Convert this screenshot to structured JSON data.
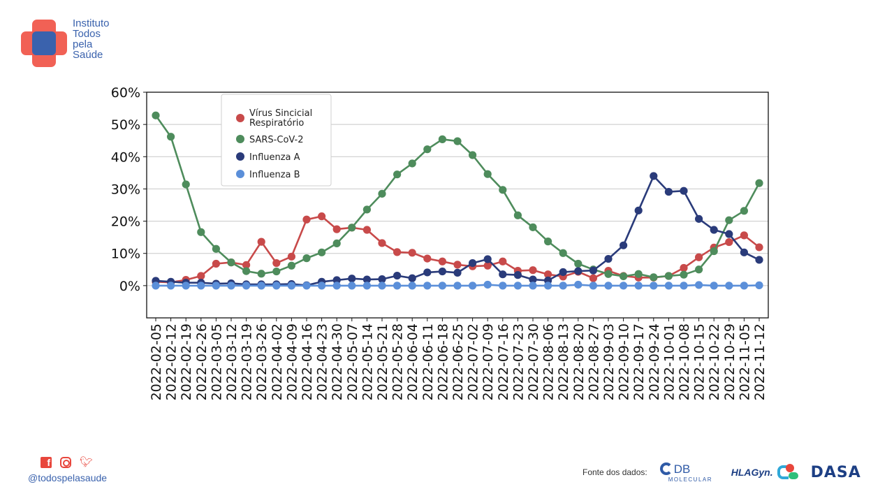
{
  "brand": {
    "name_lines": [
      "Instituto",
      "Todos",
      "pela",
      "Saúde"
    ],
    "colors": {
      "red": "#f0584c",
      "blue": "#3a62ad"
    }
  },
  "footer": {
    "social_icons": [
      "facebook-icon",
      "instagram-icon",
      "twitter-icon"
    ],
    "handle": "@todospelasaude",
    "source_label": "Fonte dos dados:",
    "partner_logos": {
      "db_line1": "DB",
      "db_line2": "MOLECULAR",
      "hla": "HLAGyn.",
      "dasa": "DASA"
    }
  },
  "chart_data": {
    "type": "line",
    "ylim": [
      -10,
      60
    ],
    "y_ticks": [
      0,
      10,
      20,
      30,
      40,
      50,
      60
    ],
    "y_tick_labels": [
      "0%",
      "10%",
      "20%",
      "30%",
      "40%",
      "50%",
      "60%"
    ],
    "grid": "horizontal",
    "legend_position": "top-left",
    "x": [
      "2022-02-05",
      "2022-02-12",
      "2022-02-19",
      "2022-02-26",
      "2022-03-05",
      "2022-03-12",
      "2022-03-19",
      "2022-03-26",
      "2022-04-02",
      "2022-04-09",
      "2022-04-16",
      "2022-04-23",
      "2022-04-30",
      "2022-05-07",
      "2022-05-14",
      "2022-05-21",
      "2022-05-28",
      "2022-06-04",
      "2022-06-11",
      "2022-06-18",
      "2022-06-25",
      "2022-07-02",
      "2022-07-09",
      "2022-07-16",
      "2022-07-23",
      "2022-07-30",
      "2022-08-06",
      "2022-08-13",
      "2022-08-20",
      "2022-08-27",
      "2022-09-03",
      "2022-09-10",
      "2022-09-17",
      "2022-09-24",
      "2022-10-01",
      "2022-10-08",
      "2022-10-15",
      "2022-10-22",
      "2022-10-29",
      "2022-11-05",
      "2022-11-12"
    ],
    "series": [
      {
        "name": "Vírus Sincicial Respiratório",
        "legend_lines": [
          "Vírus Sincicial",
          "Respiratório"
        ],
        "color": "#c84a4a",
        "values": [
          1.2,
          1.0,
          1.8,
          3.0,
          6.8,
          7.2,
          6.4,
          13.6,
          7.0,
          9.0,
          20.5,
          21.5,
          17.5,
          18.0,
          17.3,
          13.2,
          10.4,
          10.2,
          8.4,
          7.5,
          6.5,
          6.0,
          6.2,
          7.5,
          4.6,
          4.8,
          3.5,
          2.8,
          4.3,
          2.3,
          4.6,
          3.0,
          2.5,
          2.5,
          3.0,
          5.5,
          8.8,
          11.8,
          13.5,
          15.6,
          11.9
        ]
      },
      {
        "name": "SARS-CoV-2",
        "legend_lines": [
          "SARS-CoV-2"
        ],
        "color": "#4e8c5c",
        "values": [
          52.8,
          46.2,
          31.4,
          16.6,
          11.4,
          7.2,
          4.5,
          3.7,
          4.4,
          6.2,
          8.5,
          10.3,
          13.1,
          18.0,
          23.6,
          28.5,
          34.5,
          37.9,
          42.3,
          45.4,
          44.8,
          40.5,
          34.6,
          29.7,
          21.8,
          18.1,
          13.7,
          10.1,
          6.8,
          5.0,
          3.6,
          2.9,
          3.6,
          2.6,
          3.0,
          3.4,
          5.0,
          10.7,
          20.3,
          23.2,
          31.8
        ]
      },
      {
        "name": "Influenza A",
        "legend_lines": [
          "Influenza A"
        ],
        "color": "#2a3b7a",
        "values": [
          1.5,
          1.2,
          0.9,
          0.9,
          0.6,
          0.7,
          0.4,
          0.4,
          0.4,
          0.5,
          0.1,
          1.2,
          1.7,
          2.2,
          1.9,
          2.0,
          3.1,
          2.3,
          4.1,
          4.4,
          4.0,
          7.0,
          8.2,
          3.5,
          3.3,
          1.9,
          1.6,
          4.2,
          4.5,
          4.7,
          8.3,
          12.5,
          23.3,
          34.0,
          29.1,
          29.4,
          20.7,
          17.3,
          16.0,
          10.3,
          8.0
        ]
      },
      {
        "name": "Influenza B",
        "legend_lines": [
          "Influenza B"
        ],
        "color": "#5b8fd9",
        "values": [
          0.0,
          0.0,
          0.0,
          0.0,
          0.0,
          0.0,
          0.0,
          0.0,
          0.0,
          0.0,
          0.0,
          0.0,
          0.0,
          0.0,
          0.0,
          0.0,
          0.0,
          0.0,
          0.0,
          0.0,
          0.0,
          0.0,
          0.3,
          0.0,
          0.0,
          0.0,
          0.0,
          0.0,
          0.3,
          0.0,
          0.0,
          0.0,
          0.0,
          0.0,
          0.0,
          0.0,
          0.2,
          0.0,
          0.0,
          0.0,
          0.1
        ]
      }
    ]
  }
}
